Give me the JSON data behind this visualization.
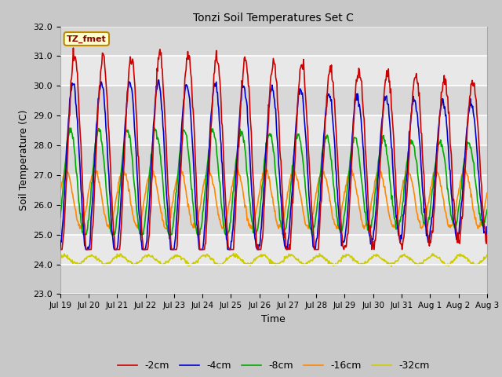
{
  "title": "Tonzi Soil Temperatures Set C",
  "xlabel": "Time",
  "ylabel": "Soil Temperature (C)",
  "ylim": [
    23.0,
    32.0
  ],
  "yticks": [
    23.0,
    24.0,
    25.0,
    26.0,
    27.0,
    28.0,
    29.0,
    30.0,
    31.0,
    32.0
  ],
  "xtick_labels": [
    "Jul 19",
    "Jul 20",
    "Jul 21",
    "Jul 22",
    "Jul 23",
    "Jul 24",
    "Jul 25",
    "Jul 26",
    "Jul 27",
    "Jul 28",
    "Jul 29",
    "Jul 30",
    "Jul 31",
    "Aug 1",
    "Aug 2",
    "Aug 3"
  ],
  "colors": {
    "-2cm": "#cc0000",
    "-4cm": "#0000cc",
    "-8cm": "#00aa00",
    "-16cm": "#ff8800",
    "-32cm": "#cccc00"
  },
  "line_width": 1.2,
  "annotation_text": "TZ_fmet",
  "annotation_box_color": "#ffffcc",
  "annotation_box_edge_color": "#bb8800",
  "annotation_text_color": "#880000",
  "fig_bg_color": "#c8c8c8",
  "plot_bg_color": "#e8e8e8",
  "grid_color": "#ffffff",
  "n_days": 15,
  "points_per_day": 48
}
